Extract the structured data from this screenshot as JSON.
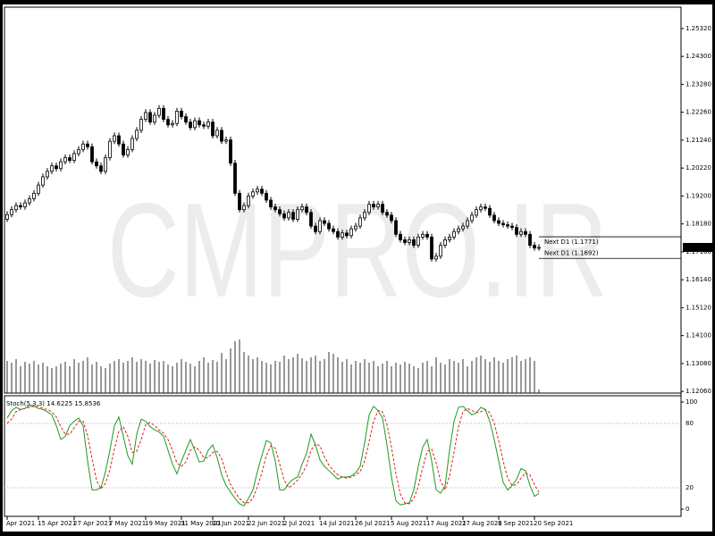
{
  "chart_data": [
    {
      "type": "candlestick",
      "watermark": "CMPRO.IR",
      "categories": [
        "Apr 2021",
        null,
        null,
        null,
        null,
        null,
        null,
        "15 Apr 2021",
        null,
        null,
        null,
        null,
        null,
        null,
        null,
        "27 Apr 2021",
        null,
        null,
        null,
        null,
        null,
        null,
        null,
        "7 May 2021",
        null,
        null,
        null,
        null,
        null,
        null,
        null,
        "19 May 2021",
        null,
        null,
        null,
        null,
        null,
        null,
        null,
        "31 May 2021",
        null,
        null,
        null,
        null,
        null,
        null,
        "10 Jun 2021",
        null,
        null,
        null,
        null,
        null,
        null,
        null,
        "22 Jun 2021",
        null,
        null,
        null,
        null,
        null,
        null,
        null,
        "2 Jul 2021",
        null,
        null,
        null,
        null,
        null,
        null,
        null,
        "14 Jul 2021",
        null,
        null,
        null,
        null,
        null,
        null,
        null,
        "26 Jul 2021",
        null,
        null,
        null,
        null,
        null,
        null,
        null,
        "5 Aug 2021",
        null,
        null,
        null,
        null,
        null,
        null,
        null,
        "17 Aug 2021",
        null,
        null,
        null,
        null,
        null,
        null,
        null,
        "27 Aug 2021",
        null,
        null,
        null,
        null,
        null,
        null,
        null,
        "8 Sep 2021",
        null,
        null,
        null,
        null,
        null,
        null,
        null,
        "20 Sep 2021",
        null
      ],
      "open": [
        1.1835,
        1.1852,
        1.187,
        1.1885,
        1.188,
        1.1895,
        1.191,
        1.193,
        1.196,
        1.199,
        1.201,
        1.203,
        1.202,
        1.2045,
        1.206,
        1.205,
        1.2075,
        1.209,
        1.211,
        1.21,
        1.2045,
        1.203,
        1.201,
        1.206,
        1.212,
        1.214,
        1.211,
        1.207,
        1.209,
        1.213,
        1.216,
        1.22,
        1.2225,
        1.219,
        1.2215,
        1.224,
        1.22,
        1.218,
        1.2185,
        1.223,
        1.221,
        1.219,
        1.217,
        1.2195,
        1.218,
        1.2175,
        1.219,
        1.214,
        1.216,
        1.212,
        1.2125,
        1.204,
        1.193,
        1.187,
        1.1885,
        1.192,
        1.1935,
        1.1945,
        1.193,
        1.1905,
        1.188,
        1.187,
        1.1855,
        1.184,
        1.186,
        1.1835,
        1.187,
        1.188,
        1.186,
        1.181,
        1.179,
        1.183,
        1.182,
        1.18,
        1.179,
        1.177,
        1.1785,
        1.1775,
        1.18,
        1.181,
        1.184,
        1.186,
        1.189,
        1.188,
        1.189,
        1.186,
        1.185,
        1.183,
        1.178,
        1.176,
        1.175,
        1.176,
        1.174,
        1.177,
        1.178,
        1.177,
        1.169,
        1.17,
        1.174,
        1.176,
        1.177,
        1.179,
        1.18,
        1.181,
        1.183,
        1.185,
        1.187,
        1.188,
        1.1875,
        1.185,
        1.183,
        1.182,
        1.1815,
        1.181,
        1.1805,
        1.178,
        1.179,
        1.178,
        1.174,
        1.173
      ],
      "high": [
        1.1864,
        1.1882,
        1.1897,
        1.1897,
        1.1907,
        1.1922,
        1.1942,
        1.1972,
        1.2002,
        1.2022,
        1.2042,
        1.2042,
        1.2057,
        1.2072,
        1.2072,
        1.2087,
        1.2102,
        1.2122,
        1.2122,
        1.2112,
        1.2057,
        1.2042,
        1.2072,
        1.2132,
        1.2152,
        1.2152,
        1.2122,
        1.2102,
        1.2142,
        1.2172,
        1.2212,
        1.2237,
        1.2237,
        1.2227,
        1.2252,
        1.2252,
        1.2212,
        1.2197,
        1.2242,
        1.2242,
        1.2222,
        1.2202,
        1.2207,
        1.2207,
        1.2192,
        1.2202,
        1.2202,
        1.2172,
        1.2172,
        1.2137,
        1.2137,
        1.2052,
        1.1942,
        1.1897,
        1.1932,
        1.1947,
        1.1957,
        1.1957,
        1.1942,
        1.1917,
        1.1892,
        1.1882,
        1.1867,
        1.1872,
        1.1872,
        1.1882,
        1.1892,
        1.1892,
        1.1872,
        1.1822,
        1.1842,
        1.1842,
        1.1832,
        1.1812,
        1.1802,
        1.1797,
        1.1797,
        1.1812,
        1.1822,
        1.1852,
        1.1872,
        1.1902,
        1.1902,
        1.1902,
        1.1902,
        1.1872,
        1.1862,
        1.1842,
        1.1792,
        1.1772,
        1.1772,
        1.1772,
        1.1782,
        1.1792,
        1.1792,
        1.1782,
        1.1712,
        1.1752,
        1.1772,
        1.1782,
        1.1802,
        1.1812,
        1.1822,
        1.1842,
        1.1862,
        1.1882,
        1.1892,
        1.1892,
        1.1887,
        1.1862,
        1.1842,
        1.1832,
        1.1827,
        1.1822,
        1.1817,
        1.1802,
        1.1802,
        1.1792,
        1.1752,
        1.1744
      ],
      "low": [
        1.1825,
        1.1842,
        1.186,
        1.187,
        1.187,
        1.1885,
        1.19,
        1.192,
        1.195,
        1.198,
        1.2,
        1.201,
        1.201,
        1.2035,
        1.204,
        1.204,
        1.2065,
        1.208,
        1.209,
        1.2035,
        1.202,
        1.2,
        1.2,
        1.205,
        1.211,
        1.21,
        1.206,
        1.206,
        1.208,
        1.212,
        1.215,
        1.219,
        1.218,
        1.218,
        1.2205,
        1.219,
        1.217,
        1.217,
        1.2175,
        1.22,
        1.218,
        1.216,
        1.216,
        1.217,
        1.2165,
        1.2165,
        1.213,
        1.213,
        1.211,
        1.211,
        1.203,
        1.192,
        1.186,
        1.186,
        1.1875,
        1.191,
        1.1925,
        1.192,
        1.1895,
        1.187,
        1.186,
        1.1845,
        1.183,
        1.183,
        1.1825,
        1.1825,
        1.186,
        1.185,
        1.18,
        1.178,
        1.178,
        1.181,
        1.179,
        1.178,
        1.176,
        1.176,
        1.1765,
        1.1765,
        1.179,
        1.18,
        1.183,
        1.185,
        1.187,
        1.187,
        1.185,
        1.184,
        1.182,
        1.177,
        1.175,
        1.174,
        1.174,
        1.173,
        1.173,
        1.176,
        1.176,
        1.168,
        1.168,
        1.169,
        1.173,
        1.175,
        1.176,
        1.178,
        1.179,
        1.18,
        1.182,
        1.184,
        1.186,
        1.1865,
        1.184,
        1.182,
        1.181,
        1.1805,
        1.18,
        1.1795,
        1.177,
        1.177,
        1.177,
        1.173,
        1.172,
        1.172
      ],
      "close": [
        1.1852,
        1.187,
        1.1885,
        1.188,
        1.1895,
        1.191,
        1.193,
        1.196,
        1.199,
        1.201,
        1.203,
        1.202,
        1.2045,
        1.206,
        1.205,
        1.2075,
        1.209,
        1.211,
        1.21,
        1.2045,
        1.203,
        1.201,
        1.206,
        1.212,
        1.214,
        1.211,
        1.207,
        1.209,
        1.213,
        1.216,
        1.22,
        1.2225,
        1.219,
        1.2215,
        1.224,
        1.22,
        1.218,
        1.2185,
        1.223,
        1.221,
        1.219,
        1.217,
        1.2195,
        1.218,
        1.2175,
        1.219,
        1.214,
        1.216,
        1.212,
        1.2125,
        1.204,
        1.193,
        1.187,
        1.1885,
        1.192,
        1.1935,
        1.1945,
        1.193,
        1.1905,
        1.188,
        1.187,
        1.1855,
        1.184,
        1.186,
        1.1835,
        1.187,
        1.188,
        1.186,
        1.181,
        1.179,
        1.183,
        1.182,
        1.18,
        1.179,
        1.177,
        1.1785,
        1.1775,
        1.18,
        1.181,
        1.184,
        1.186,
        1.189,
        1.188,
        1.189,
        1.186,
        1.185,
        1.183,
        1.178,
        1.176,
        1.175,
        1.176,
        1.174,
        1.177,
        1.178,
        1.177,
        1.169,
        1.17,
        1.174,
        1.176,
        1.177,
        1.179,
        1.18,
        1.181,
        1.183,
        1.185,
        1.187,
        1.188,
        1.1875,
        1.185,
        1.183,
        1.182,
        1.1815,
        1.181,
        1.1805,
        1.178,
        1.179,
        1.178,
        1.174,
        1.173,
        1.17321
      ],
      "volume": [
        36,
        34,
        38,
        30,
        35,
        33,
        36,
        32,
        34,
        30,
        28,
        30,
        33,
        35,
        30,
        38,
        34,
        36,
        40,
        32,
        35,
        30,
        28,
        33,
        36,
        38,
        34,
        36,
        40,
        35,
        38,
        36,
        33,
        37,
        35,
        36,
        32,
        30,
        34,
        38,
        35,
        33,
        30,
        36,
        40,
        34,
        37,
        35,
        45,
        38,
        50,
        58,
        60,
        46,
        42,
        38,
        40,
        36,
        34,
        32,
        36,
        35,
        42,
        38,
        40,
        44,
        39,
        36,
        40,
        42,
        36,
        38,
        46,
        44,
        40,
        35,
        38,
        32,
        36,
        34,
        38,
        34,
        36,
        30,
        33,
        36,
        30,
        34,
        32,
        35,
        33,
        30,
        28,
        34,
        36,
        30,
        40,
        34,
        32,
        38,
        36,
        34,
        38,
        30,
        36,
        40,
        42,
        38,
        35,
        40,
        36,
        34,
        38,
        40,
        42,
        36,
        38,
        40,
        36,
        4
      ],
      "up_color": "#ffffff",
      "down_color": "#000000",
      "ylim": [
        1.12,
        1.261
      ],
      "yticks": [
        {
          "value": 1.1206,
          "label": "1.12060"
        },
        {
          "value": 1.1308,
          "label": "1.13080"
        },
        {
          "value": 1.141,
          "label": "1.14100"
        },
        {
          "value": 1.1512,
          "label": "1.15120"
        },
        {
          "value": 1.1614,
          "label": "1.16140"
        },
        {
          "value": 1.1716,
          "label": "1.17160"
        },
        {
          "value": 1.1818,
          "label": "1.18180"
        },
        {
          "value": 1.192,
          "label": "1.19200"
        },
        {
          "value": 1.2022,
          "label": "1.20220"
        },
        {
          "value": 1.2124,
          "label": "1.21240"
        },
        {
          "value": 1.2226,
          "label": "1.22260"
        },
        {
          "value": 1.2328,
          "label": "1.23280"
        },
        {
          "value": 1.243,
          "label": "1.24300"
        },
        {
          "value": 1.2532,
          "label": "1.25320"
        }
      ],
      "current_price": 1.17321,
      "levels": [
        {
          "value": 1.1771,
          "label": "Next D1 (1.1771)"
        },
        {
          "value": 1.1692,
          "label": "Next D1 (1.1692)"
        }
      ]
    },
    {
      "type": "line",
      "title": "Stoch(5,3,3) 14.6225 15.8536",
      "series": [
        {
          "color": "#1f9a1f",
          "values": [
            85,
            92,
            95,
            93,
            94,
            97,
            96,
            94,
            93,
            91,
            88,
            78,
            65,
            68,
            78,
            82,
            85,
            78,
            45,
            18,
            18,
            20,
            35,
            55,
            78,
            86,
            68,
            50,
            42,
            70,
            84,
            82,
            77,
            74,
            72,
            68,
            55,
            42,
            33,
            45,
            55,
            65,
            55,
            44,
            45,
            55,
            60,
            48,
            32,
            22,
            16,
            10,
            5,
            3,
            10,
            18,
            35,
            50,
            64,
            62,
            45,
            18,
            18,
            24,
            28,
            30,
            42,
            52,
            70,
            60,
            46,
            40,
            36,
            32,
            28,
            30,
            30,
            31,
            34,
            40,
            62,
            88,
            96,
            92,
            85,
            60,
            30,
            8,
            4,
            5,
            6,
            18,
            40,
            58,
            65,
            45,
            18,
            15,
            22,
            55,
            82,
            95,
            96,
            92,
            88,
            90,
            95,
            93,
            82,
            65,
            45,
            25,
            18,
            22,
            28,
            38,
            36,
            22,
            12,
            14.6225
          ]
        },
        {
          "color": "#e02020",
          "dashed": true,
          "values": [
            80,
            84,
            91,
            93,
            94,
            95,
            96,
            96,
            94,
            93,
            91,
            86,
            77,
            70,
            70,
            76,
            82,
            82,
            69,
            47,
            27,
            19,
            24,
            37,
            56,
            73,
            77,
            68,
            53,
            54,
            65,
            79,
            81,
            78,
            74,
            71,
            65,
            55,
            43,
            40,
            44,
            55,
            58,
            55,
            48,
            48,
            53,
            54,
            47,
            34,
            23,
            16,
            10,
            6,
            6,
            10,
            21,
            34,
            50,
            59,
            57,
            42,
            27,
            20,
            23,
            27,
            33,
            41,
            55,
            61,
            59,
            49,
            41,
            36,
            32,
            30,
            29,
            30,
            32,
            35,
            45,
            63,
            82,
            92,
            91,
            79,
            58,
            33,
            14,
            6,
            5,
            10,
            21,
            39,
            54,
            56,
            43,
            26,
            18,
            31,
            53,
            77,
            91,
            94,
            92,
            90,
            91,
            93,
            90,
            80,
            64,
            45,
            29,
            22,
            23,
            29,
            34,
            32,
            23,
            15.8536
          ]
        }
      ],
      "ylim": [
        0,
        100
      ],
      "yticks": [
        0,
        20,
        80,
        100
      ]
    }
  ]
}
